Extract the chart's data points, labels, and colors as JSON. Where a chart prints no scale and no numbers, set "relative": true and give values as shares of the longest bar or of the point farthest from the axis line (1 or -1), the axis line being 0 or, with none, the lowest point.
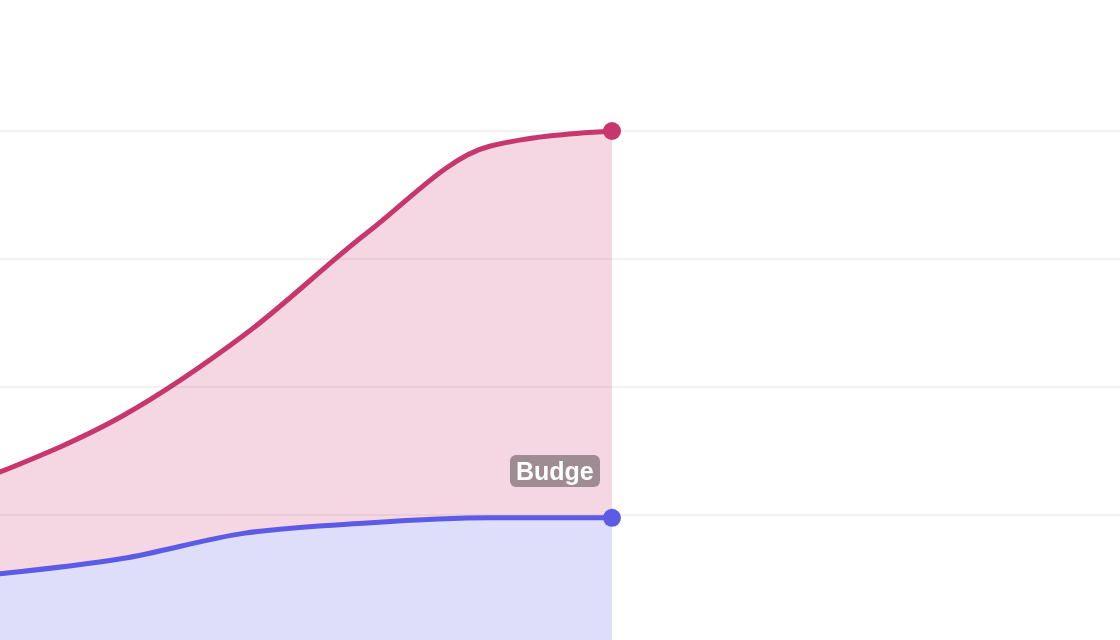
{
  "chart_data": {
    "type": "area",
    "relative": true,
    "categories": [
      null,
      null,
      null,
      null,
      null,
      null
    ],
    "series": [
      {
        "color": "#c8366e",
        "values": [
          0.33,
          0.44,
          0.6,
          0.8,
          0.97,
          1.0
        ]
      },
      {
        "color": "#5b5be6",
        "values": [
          0.13,
          0.16,
          0.21,
          0.23,
          0.24,
          0.24
        ]
      }
    ],
    "annotations": [
      "Budge"
    ],
    "grid": true,
    "legend": false
  }
}
